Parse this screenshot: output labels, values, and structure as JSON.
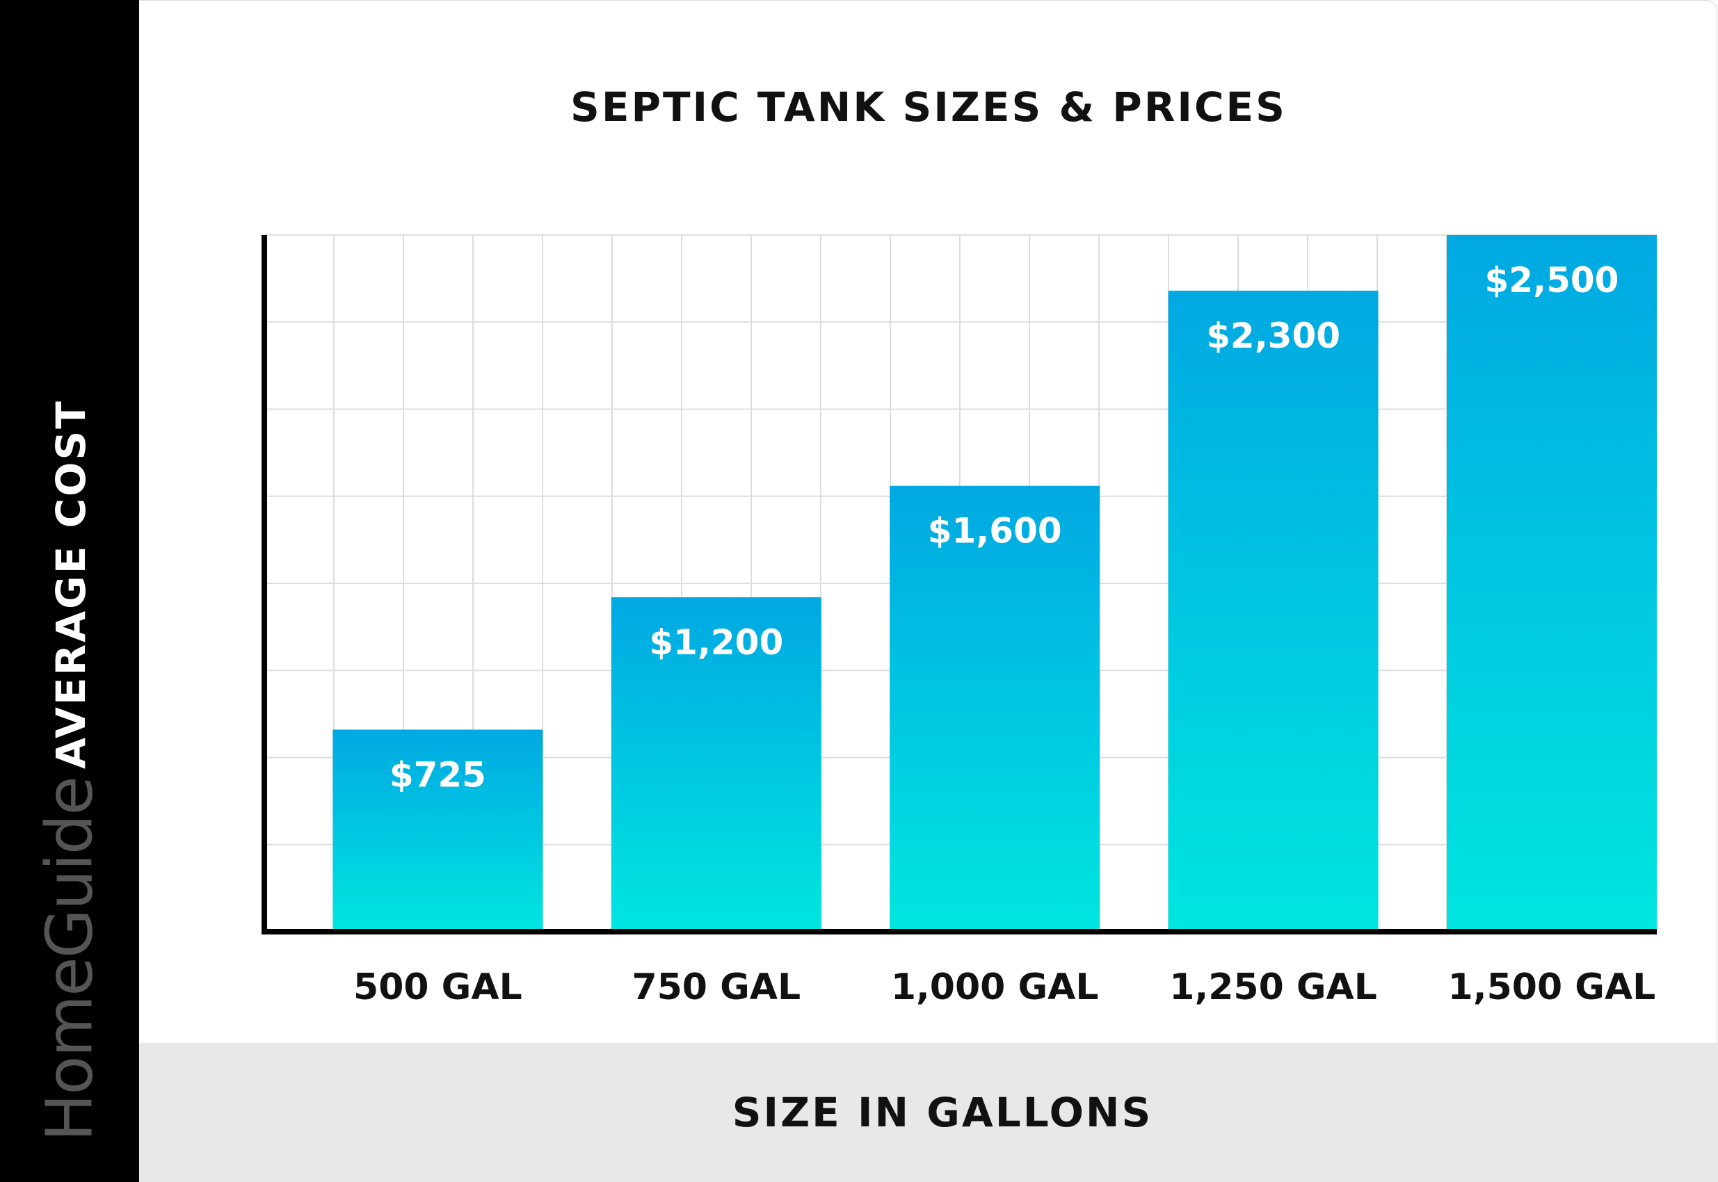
{
  "brand": "HomeGuide",
  "chart_data": {
    "type": "bar",
    "title": "SEPTIC TANK SIZES & PRICES",
    "xlabel": "SIZE IN GALLONS",
    "ylabel": "AVERAGE COST",
    "categories": [
      "500 GAL",
      "750 GAL",
      "1,000 GAL",
      "1,250 GAL",
      "1,500 GAL"
    ],
    "values": [
      725,
      1200,
      1600,
      2300,
      2500
    ],
    "value_labels": [
      "$725",
      "$1,200",
      "$1,600",
      "$2,300",
      "$2,500"
    ],
    "ylim": [
      0,
      2500
    ],
    "grid": true,
    "colors": {
      "bar_top": "#00a8e2",
      "bar_bottom": "#00e6e0",
      "grid": "#dddddd",
      "axis": "#000000"
    }
  }
}
